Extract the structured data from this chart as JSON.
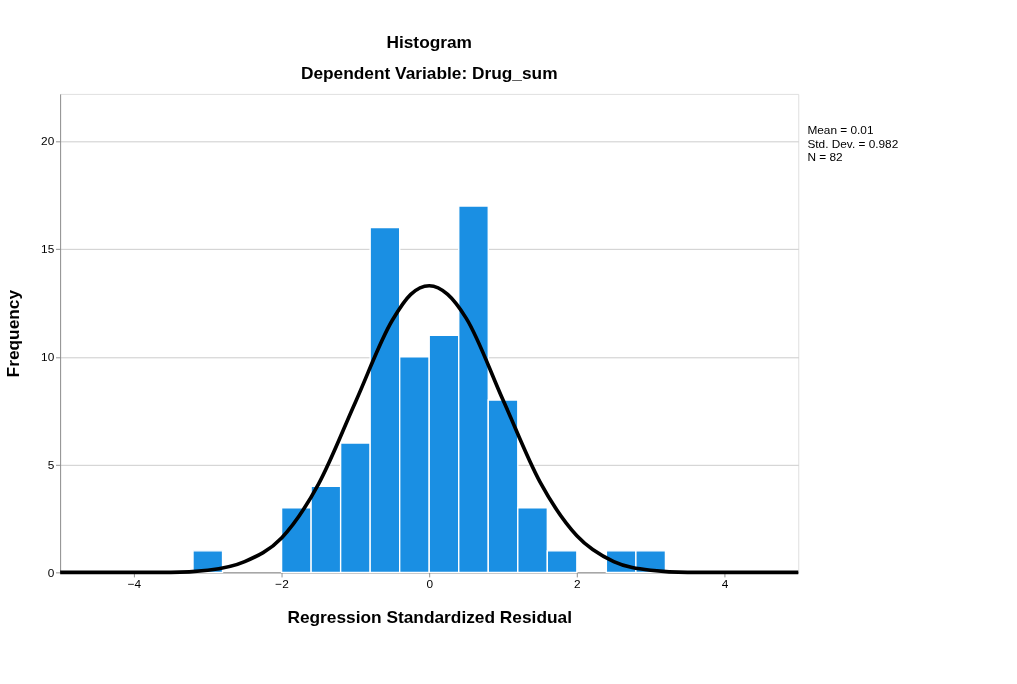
{
  "chart_data": {
    "type": "histogram",
    "title": "Histogram",
    "subtitle": "Dependent Variable: Drug_sum",
    "xlabel": "Regression Standardized Residual",
    "ylabel": "Frequency",
    "bins": [
      -3.2,
      -2.8,
      -2.4,
      -2.0,
      -1.6,
      -1.2,
      -0.8,
      -0.4,
      0.0,
      0.4,
      0.8,
      1.2,
      1.6,
      2.0,
      2.4,
      2.8,
      3.2
    ],
    "values": [
      1,
      0,
      0,
      3,
      4,
      6,
      16,
      10,
      11,
      17,
      8,
      3,
      1,
      0,
      1,
      1
    ],
    "color": "#1a8fe3",
    "series": [
      {
        "type": "line",
        "color": "#000000",
        "x": [
          -5,
          -4.5,
          -4,
          -3.5,
          -3,
          -2.5,
          -2,
          -1.5,
          -1,
          -0.5,
          -0.25,
          0,
          0.25,
          0.5,
          1,
          1.5,
          2,
          2.5,
          3,
          3.5,
          4,
          4.5,
          5
        ],
        "values": [
          0,
          0,
          0,
          0,
          0.1,
          0.5,
          1.6,
          4.1,
          7.9,
          11.7,
          12.9,
          13.3,
          12.9,
          11.8,
          8.0,
          4.2,
          1.7,
          0.5,
          0.1,
          0,
          0,
          0,
          0
        ]
      }
    ],
    "xlim": [
      -5,
      5
    ],
    "xticks": [
      -4,
      -2,
      0,
      2,
      4
    ],
    "ylim": [
      0,
      22.2
    ],
    "yticks": [
      0,
      5,
      10,
      15,
      20
    ],
    "grid": "y",
    "annotations": [
      "Mean = 0.01",
      "Std. Dev. = 0.982",
      "N = 82"
    ]
  }
}
